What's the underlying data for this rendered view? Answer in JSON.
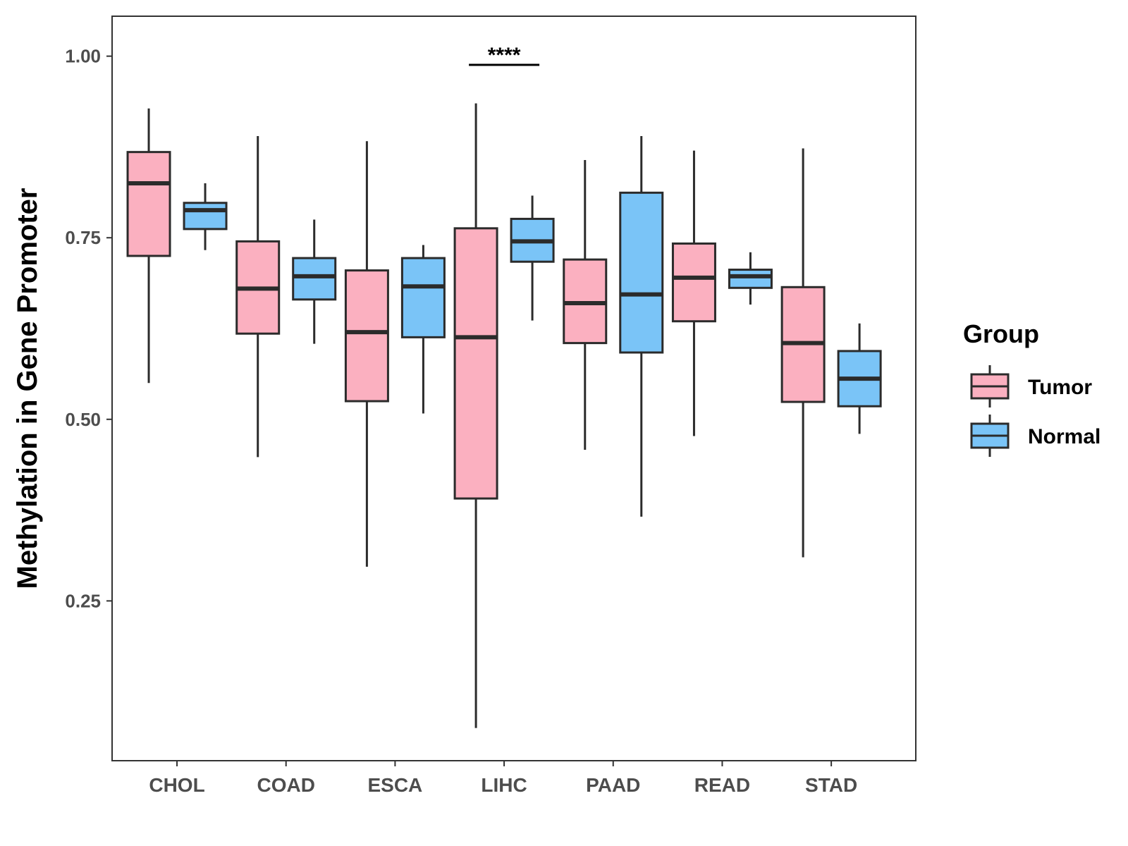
{
  "chart_data": {
    "type": "boxplot",
    "title": "",
    "xlabel": "",
    "ylabel": "Methylation in Gene Promoter",
    "ylim": [
      0.03,
      1.055
    ],
    "yticks": [
      0.25,
      0.5,
      0.75,
      1.0
    ],
    "ytick_labels": [
      "0.25",
      "0.50",
      "0.75",
      "1.00"
    ],
    "grid": false,
    "legend_position": "right",
    "categories": [
      "CHOL",
      "COAD",
      "ESCA",
      "LIHC",
      "PAAD",
      "READ",
      "STAD"
    ],
    "series": [
      {
        "name": "Tumor",
        "color": "#fbb0c0",
        "boxes": [
          {
            "min": 0.55,
            "q1": 0.725,
            "median": 0.825,
            "q3": 0.868,
            "max": 0.928
          },
          {
            "min": 0.448,
            "q1": 0.618,
            "median": 0.68,
            "q3": 0.745,
            "max": 0.89
          },
          {
            "min": 0.297,
            "q1": 0.525,
            "median": 0.62,
            "q3": 0.705,
            "max": 0.883
          },
          {
            "min": 0.075,
            "q1": 0.391,
            "median": 0.613,
            "q3": 0.763,
            "max": 0.935
          },
          {
            "min": 0.458,
            "q1": 0.605,
            "median": 0.66,
            "q3": 0.72,
            "max": 0.857
          },
          {
            "min": 0.477,
            "q1": 0.635,
            "median": 0.695,
            "q3": 0.742,
            "max": 0.87
          },
          {
            "min": 0.31,
            "q1": 0.524,
            "median": 0.605,
            "q3": 0.682,
            "max": 0.873
          }
        ]
      },
      {
        "name": "Normal",
        "color": "#7ac4f7",
        "boxes": [
          {
            "min": 0.733,
            "q1": 0.762,
            "median": 0.788,
            "q3": 0.798,
            "max": 0.825
          },
          {
            "min": 0.604,
            "q1": 0.665,
            "median": 0.697,
            "q3": 0.722,
            "max": 0.775
          },
          {
            "min": 0.508,
            "q1": 0.613,
            "median": 0.683,
            "q3": 0.722,
            "max": 0.74
          },
          {
            "min": 0.636,
            "q1": 0.717,
            "median": 0.745,
            "q3": 0.776,
            "max": 0.808
          },
          {
            "min": 0.366,
            "q1": 0.592,
            "median": 0.672,
            "q3": 0.812,
            "max": 0.89
          },
          {
            "min": 0.658,
            "q1": 0.681,
            "median": 0.697,
            "q3": 0.706,
            "max": 0.73
          },
          {
            "min": 0.48,
            "q1": 0.518,
            "median": 0.556,
            "q3": 0.594,
            "max": 0.632
          }
        ]
      }
    ],
    "annotations": [
      {
        "category": "LIHC",
        "text": "****",
        "y": 0.988
      }
    ],
    "legend": {
      "title": "Group",
      "entries": [
        "Tumor",
        "Normal"
      ]
    }
  }
}
